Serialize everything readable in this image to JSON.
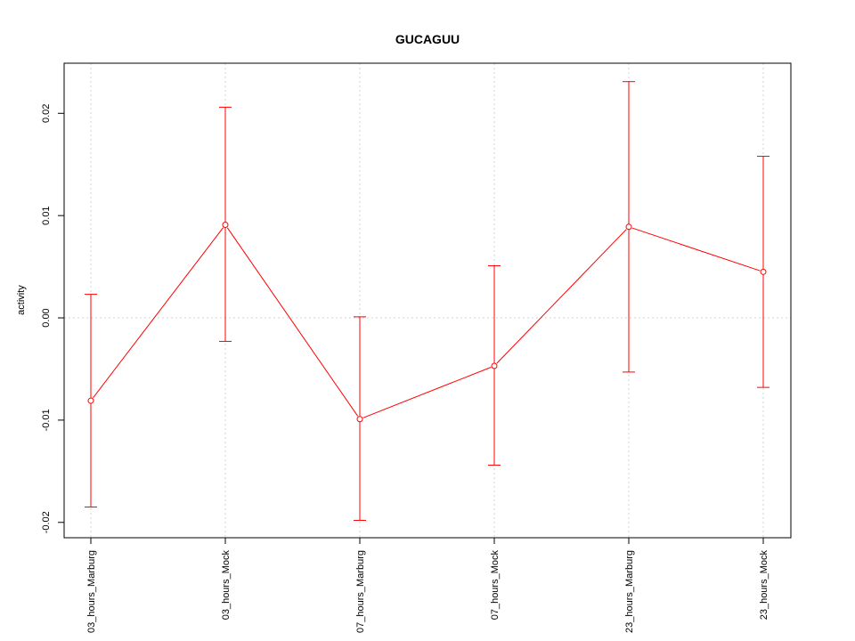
{
  "chart_data": {
    "type": "line",
    "title": "GUCAGUU",
    "xlabel": "",
    "ylabel": "activity",
    "categories": [
      "03_hours_Marburg",
      "03_hours_Mock",
      "07_hours_Marburg",
      "07_hours_Mock",
      "23_hours_Marburg",
      "23_hours_Mock"
    ],
    "series": [
      {
        "values": [
          -0.0081,
          0.0091,
          -0.0099,
          -0.0047,
          0.0089,
          0.0045
        ],
        "error_lower": [
          -0.0185,
          -0.0023,
          -0.0198,
          -0.0144,
          -0.0053,
          -0.0068
        ],
        "error_upper": [
          0.0023,
          0.0206,
          0.0001,
          0.0051,
          0.0231,
          0.0158
        ],
        "color": "#ff0000"
      }
    ],
    "yticks": [
      -0.02,
      -0.01,
      0.0,
      0.01,
      0.02
    ],
    "ytick_labels": [
      "-0.02",
      "-0.01",
      "0.00",
      "0.01",
      "0.02"
    ],
    "ylim": [
      -0.0215,
      0.0249
    ],
    "grid": true,
    "grid_color": "#d3d3d3",
    "reference_line_y": 0.0
  }
}
